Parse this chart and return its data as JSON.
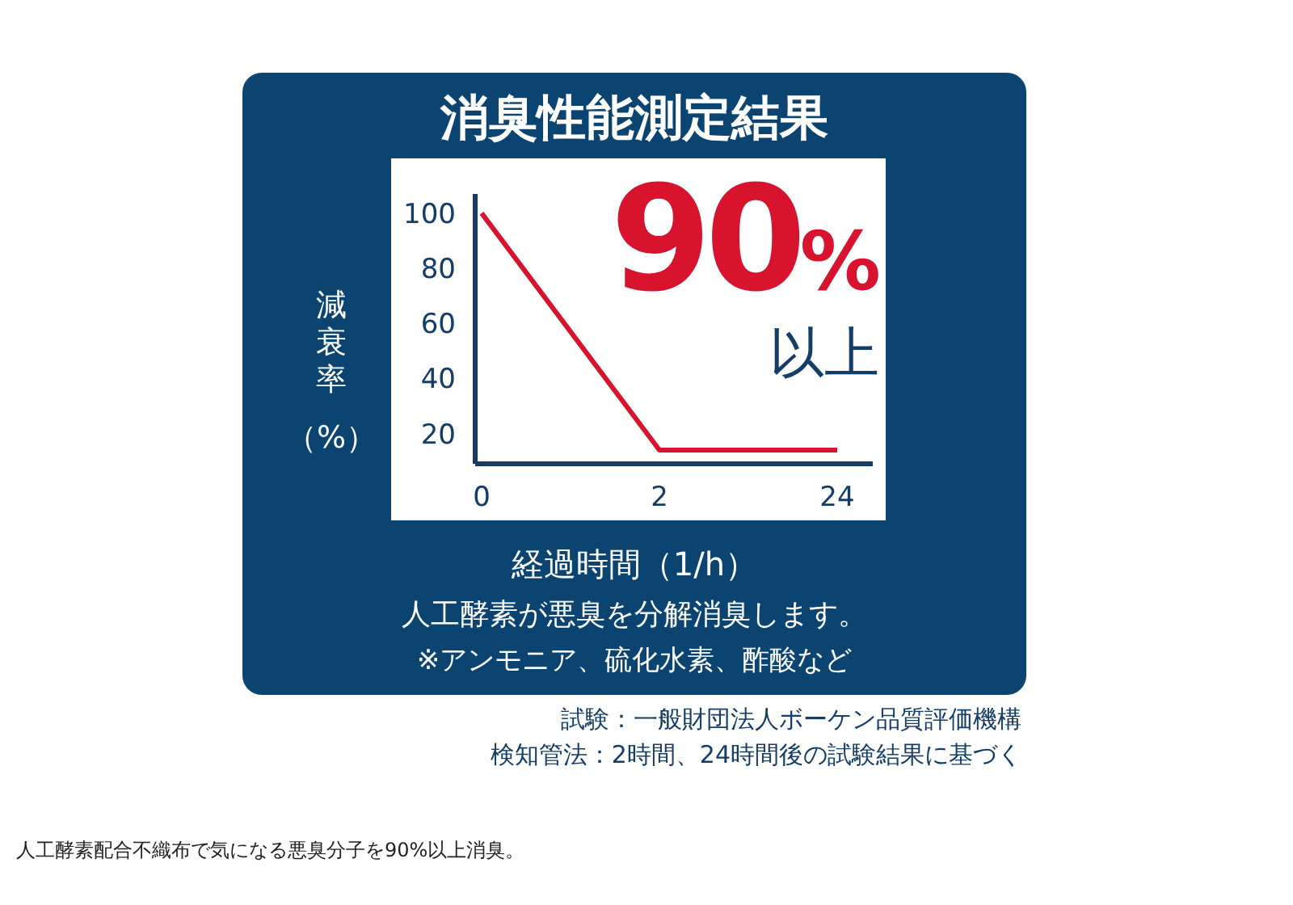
{
  "chart_data": {
    "type": "line",
    "title": "消臭性能測定結果",
    "xlabel": "経過時間（1/h）",
    "ylabel": "減衰率（%）",
    "categories": [
      "0",
      "2",
      "24"
    ],
    "series": [
      {
        "color": "#d7132e",
        "values": [
          100,
          14,
          14
        ]
      }
    ],
    "ylim": [
      9,
      107
    ],
    "yticks": [
      20,
      40,
      60,
      80,
      100
    ],
    "grid": false,
    "legend": false,
    "marker": "none",
    "line_style": "solid",
    "annotations": [
      "90%",
      "以上",
      "人工酵素が悪臭を分解消臭します。",
      "※アンモニア、硫化水素、酢酸など",
      "試験：一般財団法人ボーケン品質評価機構",
      "検知管法：2時間、24時間後の試験結果に基づく",
      "人工酵素配合不織布で気になる悪臭分子を90%以上消臭。"
    ]
  }
}
